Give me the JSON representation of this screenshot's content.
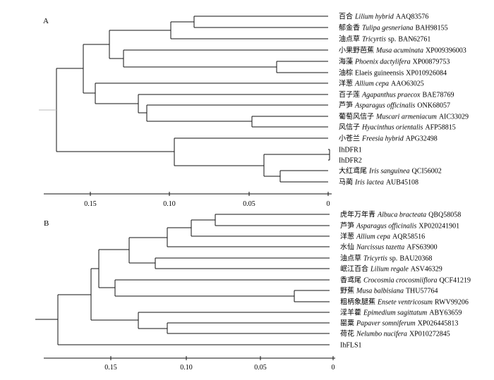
{
  "figure": {
    "colors": {
      "line": "#111111",
      "root": "#bbbbbb"
    },
    "panels": [
      {
        "label": "A",
        "axis_ticks": [
          "0.15",
          "0.10",
          "0.05",
          "0"
        ],
        "leaves": [
          {
            "cn": "百合",
            "species": "Lilium hybrid",
            "acc": "AAQ83576"
          },
          {
            "cn": "郁金香",
            "species": "Tulipa gesneriana",
            "acc": "BAH98155"
          },
          {
            "cn": "油点草",
            "species": "Tricyrtis",
            "suffix": "sp.",
            "acc": "BAN62761"
          },
          {
            "cn": "小果野芭蕉",
            "species": "Musa acuminata",
            "acc": "XP009396003"
          },
          {
            "cn": "海藻",
            "species": "Phoenix dactylifera",
            "acc": "XP00879753"
          },
          {
            "cn": "油棕",
            "plain": "Elaeis guineensis",
            "acc": "XP010926084"
          },
          {
            "cn": "洋葱",
            "species": "Allium cepa",
            "acc": "AAO63025"
          },
          {
            "cn": "百子莲",
            "species": "Agapanthus praecox",
            "acc": "BAE78769"
          },
          {
            "cn": "芦笋",
            "species": "Asparagus officinalis",
            "acc": "ONK68057"
          },
          {
            "cn": "葡萄风信子",
            "species": "Muscari armeniacum",
            "acc": "AIC33029"
          },
          {
            "cn": "风信子",
            "species": "Hyacinthus orientalis",
            "acc": "AFP58815"
          },
          {
            "cn": "小苍兰",
            "species": "Freesia hybrid",
            "acc": "APG32498"
          },
          {
            "plain": "IhDFR1"
          },
          {
            "plain": "IhDFR2"
          },
          {
            "cn": "大红鸢尾",
            "species": "Iris sanguinea",
            "acc": "QCI56002"
          },
          {
            "cn": "马蔺",
            "species": "Iris lactea",
            "acc": "AUB45108"
          }
        ]
      },
      {
        "label": "B",
        "axis_ticks": [
          "0.15",
          "0.10",
          "0.05",
          "0"
        ],
        "leaves": [
          {
            "cn": "虎年万年青",
            "species": "Albuca bracteata",
            "acc": "QBQ58058"
          },
          {
            "cn": "芦笋",
            "species": "Asparagus officinalis",
            "acc": "XP020241901"
          },
          {
            "cn": "洋葱",
            "species": "Allium cepa",
            "acc": "AQR58516"
          },
          {
            "cn": "水仙",
            "species": "Narcissus tazetta",
            "acc": "AFS63900"
          },
          {
            "cn": "油点草",
            "species": "Tricyrtis",
            "suffix": "sp.",
            "acc": "BAU20368"
          },
          {
            "cn": "岷江百合",
            "species": "Lilium regale",
            "acc": "ASV46329"
          },
          {
            "cn": "香鸢尾",
            "species": "Crocosmia crocosmiiflora",
            "acc": "QCF41219"
          },
          {
            "cn": "野蕉",
            "species": "Musa balbisiana",
            "acc": "THU57764"
          },
          {
            "cn": "粗柄象腿蕉",
            "species": "Ensete ventricosum",
            "acc": "RWV99206"
          },
          {
            "cn": "淫羊藿",
            "species": "Epimedium sagittatum",
            "acc": "ABY63659"
          },
          {
            "cn": "罂粟",
            "species": "Papaver somniferum",
            "acc": "XP026445813"
          },
          {
            "cn": "荷花",
            "species": "Nelumbo nucifera",
            "acc": "XP010272845"
          },
          {
            "plain": "IhFLS1"
          }
        ]
      }
    ]
  }
}
